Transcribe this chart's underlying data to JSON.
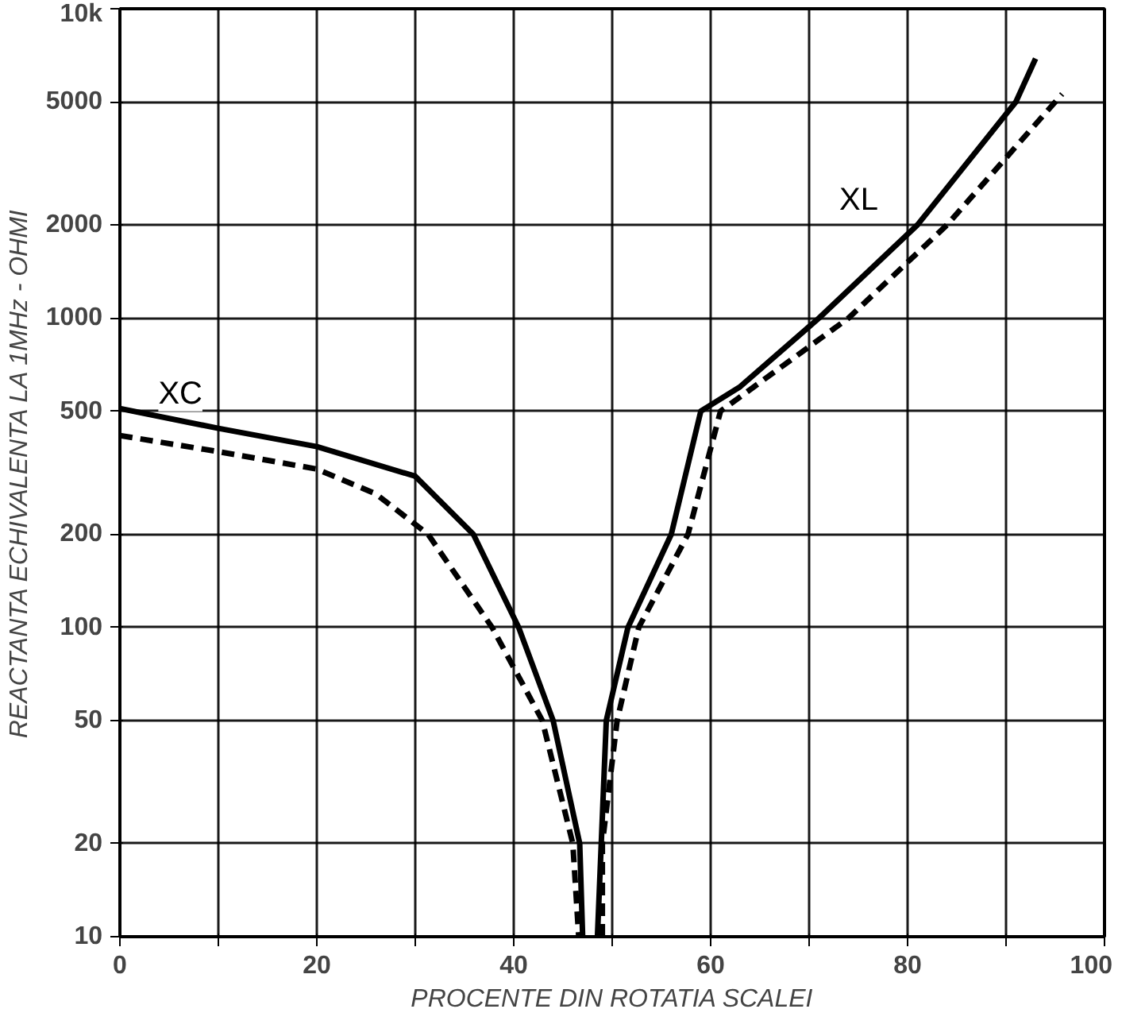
{
  "chart_data": {
    "type": "line",
    "xlabel": "PROCENTE DIN ROTATIA SCALEI",
    "ylabel": "REACTANTA ECHIVALENTA LA 1MHz - OHMI",
    "log": "y",
    "grid": true,
    "marker": "none",
    "xlim": [
      0,
      100
    ],
    "ylim": [
      10,
      10000
    ],
    "xticks": [
      0,
      {
        "value": 10,
        "label": null
      },
      20,
      {
        "value": 30,
        "label": null
      },
      40,
      {
        "value": 50,
        "label": null
      },
      60,
      {
        "value": 70,
        "label": null
      },
      80,
      {
        "value": 90,
        "label": null
      },
      100
    ],
    "yticks": [
      10,
      20,
      50,
      100,
      200,
      500,
      1000,
      2000,
      5000,
      {
        "value": 10000,
        "label": "10k"
      }
    ],
    "series": [
      {
        "color": "#000000",
        "line_style": "solid",
        "x": [
          0,
          10,
          20,
          30,
          35.9,
          40.5,
          44,
          46.7,
          47
        ],
        "values": [
          510,
          440,
          384,
          308,
          200,
          100,
          50,
          20,
          10
        ]
      },
      {
        "color": "#000000",
        "line_style": "dashed",
        "x": [
          0,
          10,
          20,
          26,
          31.3,
          37.8,
          42.9,
          46,
          46.6
        ],
        "values": [
          417,
          370,
          325,
          270,
          200,
          100,
          50,
          20,
          10
        ]
      },
      {
        "color": "#000000",
        "line_style": "solid",
        "x": [
          48.5,
          49.4,
          51.6,
          56,
          59,
          63,
          71,
          81,
          91,
          93
        ],
        "values": [
          10,
          50,
          100,
          200,
          500,
          600,
          1000,
          2000,
          5000,
          6900
        ]
      },
      {
        "color": "#000000",
        "line_style": "dashed",
        "x": [
          49,
          49,
          50.5,
          52.7,
          57.7,
          61,
          74,
          84,
          95,
          95.7
        ],
        "values": [
          10,
          20,
          50,
          100,
          200,
          500,
          1000,
          2000,
          5000,
          5300
        ]
      }
    ],
    "annotations": [
      "XC",
      "XL"
    ]
  }
}
